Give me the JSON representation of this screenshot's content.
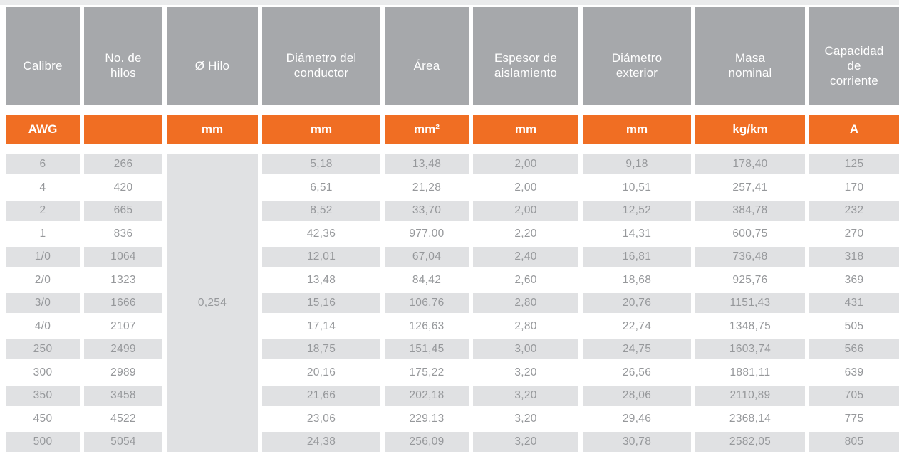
{
  "colors": {
    "header_gray": "#A6A8AB",
    "accent_orange": "#F06E23",
    "stripe_gray": "#E0E1E3",
    "data_text": "#96989B",
    "top_strip": "#EAEBEC"
  },
  "chart_data": {
    "type": "table",
    "columns": [
      {
        "key": "calibre",
        "label": "Calibre",
        "unit": "AWG"
      },
      {
        "key": "no-de-hilos",
        "label": "No. de\nhilos",
        "unit": ""
      },
      {
        "key": "diametro-hilo",
        "label": "Ø Hilo",
        "unit": "mm"
      },
      {
        "key": "diametro-conductor",
        "label": "Diámetro del\nconductor",
        "unit": "mm"
      },
      {
        "key": "area",
        "label": "Área",
        "unit": "mm²"
      },
      {
        "key": "espesor-aislamiento",
        "label": "Espesor de\naislamiento",
        "unit": "mm"
      },
      {
        "key": "diametro-exterior",
        "label": "Diámetro\nexterior",
        "unit": "mm"
      },
      {
        "key": "masa-nominal",
        "label": "Masa\nnominal",
        "unit": "kg/km"
      },
      {
        "key": "capacidad-corriente",
        "label": "Capacidad\nde\ncorriente",
        "unit": "A"
      }
    ],
    "merged_cell": {
      "column_key": "diametro-hilo",
      "value": "0,254",
      "row_span": 13
    },
    "rows": [
      [
        "6",
        "266",
        "5,18",
        "13,48",
        "2,00",
        "9,18",
        "178,40",
        "125"
      ],
      [
        "4",
        "420",
        "6,51",
        "21,28",
        "2,00",
        "10,51",
        "257,41",
        "170"
      ],
      [
        "2",
        "665",
        "8,52",
        "33,70",
        "2,00",
        "12,52",
        "384,78",
        "232"
      ],
      [
        "1",
        "836",
        "42,36",
        "977,00",
        "2,20",
        "14,31",
        "600,75",
        "270"
      ],
      [
        "1/0",
        "1064",
        "12,01",
        "67,04",
        "2,40",
        "16,81",
        "736,48",
        "318"
      ],
      [
        "2/0",
        "1323",
        "13,48",
        "84,42",
        "2,60",
        "18,68",
        "925,76",
        "369"
      ],
      [
        "3/0",
        "1666",
        "15,16",
        "106,76",
        "2,80",
        "20,76",
        "1151,43",
        "431"
      ],
      [
        "4/0",
        "2107",
        "17,14",
        "126,63",
        "2,80",
        "22,74",
        "1348,75",
        "505"
      ],
      [
        "250",
        "2499",
        "18,75",
        "151,45",
        "3,00",
        "24,75",
        "1603,74",
        "566"
      ],
      [
        "300",
        "2989",
        "20,16",
        "175,22",
        "3,20",
        "26,56",
        "1881,11",
        "639"
      ],
      [
        "350",
        "3458",
        "21,66",
        "202,18",
        "3,20",
        "28,06",
        "2110,89",
        "705"
      ],
      [
        "450",
        "4522",
        "23,06",
        "229,13",
        "3,20",
        "29,46",
        "2368,14",
        "775"
      ],
      [
        "500",
        "5054",
        "24,38",
        "256,09",
        "3,20",
        "30,78",
        "2582,05",
        "805"
      ]
    ]
  }
}
